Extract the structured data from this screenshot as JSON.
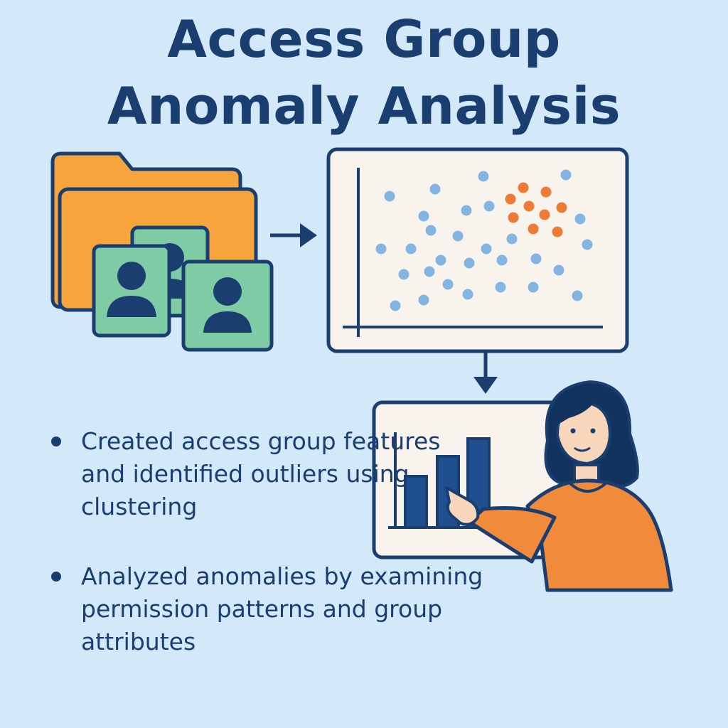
{
  "title": {
    "line1": "Access Group",
    "line2": "Anomaly Analysis"
  },
  "bullets": [
    "Created access group features and identified outliers using clustering",
    "Analyzed anomalies by examining permission patterns and group attributes"
  ],
  "colors": {
    "background": "#d3e8f9",
    "navy": "#1b3e70",
    "folder": "#f6a43b",
    "user_card": "#7ecba6",
    "normal_point": "#84b4e2",
    "anomaly_point": "#ef7a35",
    "person_shirt": "#f28a3b"
  },
  "icons": [
    "folder-icon",
    "user-card-icon",
    "arrow-right-icon",
    "arrow-down-icon",
    "scatter-plot-panel",
    "bar-chart-panel",
    "person-presenting-illustration"
  ]
}
